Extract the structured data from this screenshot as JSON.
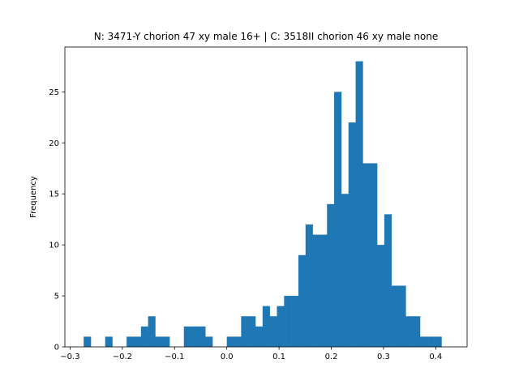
{
  "chart_data": {
    "type": "histogram",
    "title": "N: 3471-Y chorion 47 xy male 16+ | C: 3518II chorion 46 xy male none",
    "xlabel": "",
    "ylabel": "Frequency",
    "xlim": [
      -0.31,
      0.46
    ],
    "ylim": [
      0,
      29.4
    ],
    "bin_width": 0.0137,
    "bins": [
      {
        "x0": -0.274,
        "count": 1
      },
      {
        "x0": -0.2603,
        "count": 0
      },
      {
        "x0": -0.2466,
        "count": 0
      },
      {
        "x0": -0.2329,
        "count": 1
      },
      {
        "x0": -0.2192,
        "count": 0
      },
      {
        "x0": -0.2055,
        "count": 0
      },
      {
        "x0": -0.1918,
        "count": 1
      },
      {
        "x0": -0.1781,
        "count": 1
      },
      {
        "x0": -0.1644,
        "count": 2
      },
      {
        "x0": -0.1507,
        "count": 3
      },
      {
        "x0": -0.137,
        "count": 1
      },
      {
        "x0": -0.1233,
        "count": 1
      },
      {
        "x0": -0.1096,
        "count": 0
      },
      {
        "x0": -0.0959,
        "count": 0
      },
      {
        "x0": -0.0822,
        "count": 2
      },
      {
        "x0": -0.0685,
        "count": 2
      },
      {
        "x0": -0.0548,
        "count": 2
      },
      {
        "x0": -0.0411,
        "count": 1
      },
      {
        "x0": -0.0274,
        "count": 0
      },
      {
        "x0": -0.0137,
        "count": 0
      },
      {
        "x0": 0.0,
        "count": 1
      },
      {
        "x0": 0.0137,
        "count": 1
      },
      {
        "x0": 0.0274,
        "count": 3
      },
      {
        "x0": 0.0411,
        "count": 3
      },
      {
        "x0": 0.0548,
        "count": 2
      },
      {
        "x0": 0.0685,
        "count": 4
      },
      {
        "x0": 0.0822,
        "count": 3
      },
      {
        "x0": 0.0959,
        "count": 4
      },
      {
        "x0": 0.1096,
        "count": 5
      },
      {
        "x0": 0.1233,
        "count": 5
      },
      {
        "x0": 0.137,
        "count": 9
      },
      {
        "x0": 0.1507,
        "count": 12
      },
      {
        "x0": 0.1644,
        "count": 11
      },
      {
        "x0": 0.1781,
        "count": 11
      },
      {
        "x0": 0.1918,
        "count": 14
      },
      {
        "x0": 0.2055,
        "count": 25
      },
      {
        "x0": 0.2192,
        "count": 15
      },
      {
        "x0": 0.2329,
        "count": 22
      },
      {
        "x0": 0.2466,
        "count": 28
      },
      {
        "x0": 0.2603,
        "count": 18
      },
      {
        "x0": 0.274,
        "count": 18
      },
      {
        "x0": 0.2877,
        "count": 10
      },
      {
        "x0": 0.3014,
        "count": 13
      },
      {
        "x0": 0.3151,
        "count": 6
      },
      {
        "x0": 0.3288,
        "count": 6
      },
      {
        "x0": 0.3425,
        "count": 3
      },
      {
        "x0": 0.3562,
        "count": 3
      },
      {
        "x0": 0.3699,
        "count": 1
      },
      {
        "x0": 0.3836,
        "count": 1
      },
      {
        "x0": 0.3973,
        "count": 1
      }
    ],
    "x_ticks": [
      {
        "value": -0.3,
        "label": "−0.3"
      },
      {
        "value": -0.2,
        "label": "−0.2"
      },
      {
        "value": -0.1,
        "label": "−0.1"
      },
      {
        "value": 0.0,
        "label": "0.0"
      },
      {
        "value": 0.1,
        "label": "0.1"
      },
      {
        "value": 0.2,
        "label": "0.2"
      },
      {
        "value": 0.3,
        "label": "0.3"
      },
      {
        "value": 0.4,
        "label": "0.4"
      }
    ],
    "y_ticks": [
      {
        "value": 0,
        "label": "0"
      },
      {
        "value": 5,
        "label": "5"
      },
      {
        "value": 10,
        "label": "10"
      },
      {
        "value": 15,
        "label": "15"
      },
      {
        "value": 20,
        "label": "20"
      },
      {
        "value": 25,
        "label": "25"
      }
    ],
    "grid": false,
    "legend": "none",
    "bar_color": "#1f77b4"
  }
}
